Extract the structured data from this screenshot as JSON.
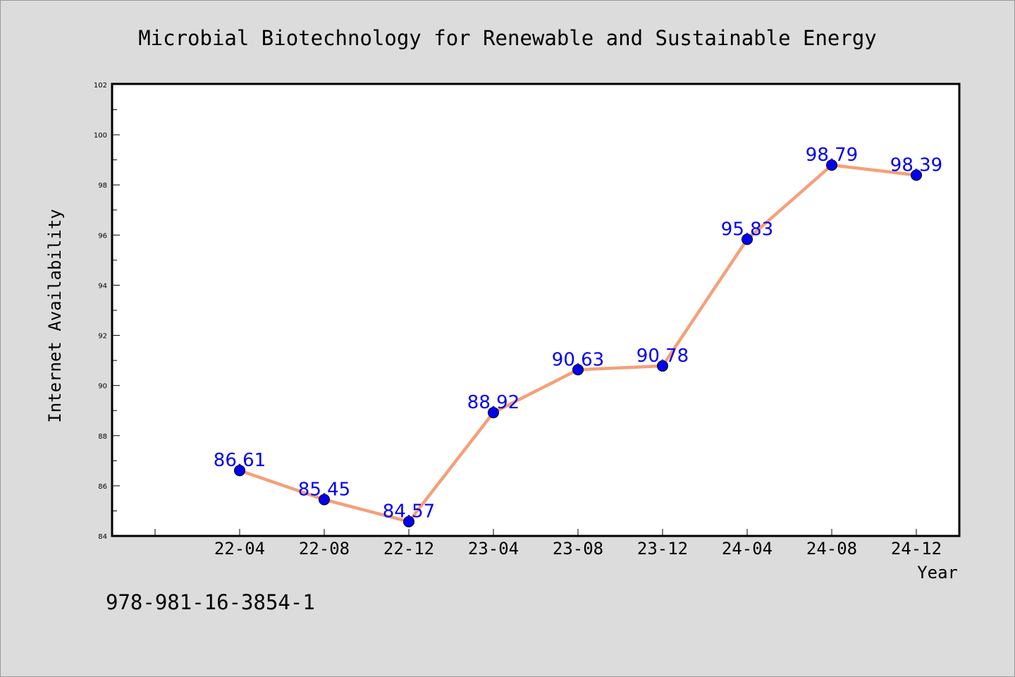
{
  "chart_data": {
    "type": "line",
    "title": "Microbial Biotechnology for Renewable and Sustainable Energy",
    "xlabel": "Year",
    "ylabel": "Internet Availability",
    "ylim": [
      84,
      102
    ],
    "yticks": [
      "84",
      "86",
      "88",
      "90",
      "92",
      "94",
      "96",
      "98",
      "100",
      "102"
    ],
    "categories": [
      "22-04",
      "22-08",
      "22-12",
      "23-04",
      "23-08",
      "23-12",
      "24-04",
      "24-08",
      "24-12"
    ],
    "series": [
      {
        "values": [
          86.61,
          85.45,
          84.57,
          88.92,
          90.63,
          90.78,
          95.83,
          98.79,
          98.39
        ],
        "labels": [
          "86.61",
          "85.45",
          "84.57",
          "88.92",
          "90.63",
          "90.78",
          "95.83",
          "98.79",
          "98.39"
        ],
        "line_color": "#f4a07a",
        "marker_color": "#0000ee",
        "label_color": "#0000ee"
      }
    ],
    "grid": false,
    "legend": "none"
  },
  "footer": {
    "isbn": "978-981-16-3854-1"
  }
}
